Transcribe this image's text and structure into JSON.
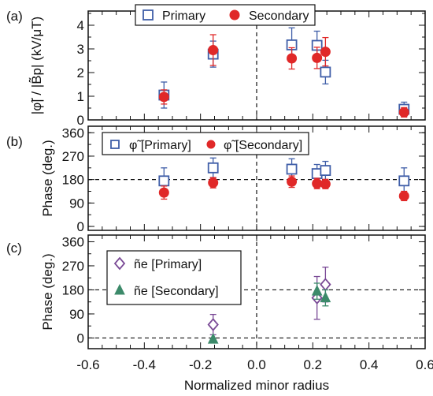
{
  "chart_data": [
    {
      "panel": "(a)",
      "type": "scatter",
      "ylabel": "|φ̃| / |B̃p| (kV/μT)",
      "ylim": [
        0,
        4.6
      ],
      "yticks": [
        0,
        1,
        2,
        3,
        4
      ],
      "ytick_labels": [
        "0",
        "1",
        "2",
        "3",
        "4"
      ],
      "xlim": [
        -0.6,
        0.6
      ],
      "hline": null,
      "legend": {
        "position": "top",
        "layout": "horizontal"
      },
      "series": [
        {
          "name": "Primary",
          "marker": "open-square",
          "color": "#3f5ea8",
          "points": [
            {
              "x": -0.33,
              "y": 1.05,
              "err": 0.55
            },
            {
              "x": -0.155,
              "y": 2.78,
              "err": 0.55
            },
            {
              "x": 0.125,
              "y": 3.17,
              "err": 0.72
            },
            {
              "x": 0.215,
              "y": 3.15,
              "err": 0.6
            },
            {
              "x": 0.245,
              "y": 2.02,
              "err": 0.5
            },
            {
              "x": 0.525,
              "y": 0.45,
              "err": 0.3
            }
          ]
        },
        {
          "name": "Secondary",
          "marker": "filled-circle",
          "color": "#e02828",
          "points": [
            {
              "x": -0.33,
              "y": 0.97,
              "err": 0.3
            },
            {
              "x": -0.155,
              "y": 2.95,
              "err": 0.65
            },
            {
              "x": 0.125,
              "y": 2.6,
              "err": 0.45
            },
            {
              "x": 0.215,
              "y": 2.62,
              "err": 0.45
            },
            {
              "x": 0.245,
              "y": 2.88,
              "err": 0.6
            },
            {
              "x": 0.525,
              "y": 0.32,
              "err": 0.2
            }
          ]
        }
      ]
    },
    {
      "panel": "(b)",
      "type": "scatter",
      "ylabel": "Phase (deg.)",
      "ylim": [
        -15,
        385
      ],
      "yticks": [
        0,
        90,
        180,
        270,
        360
      ],
      "ytick_labels": [
        "0",
        "90",
        "180",
        "270",
        "360"
      ],
      "xlim": [
        -0.6,
        0.6
      ],
      "hline": 180,
      "legend": {
        "position": "top-left",
        "layout": "horizontal"
      },
      "series": [
        {
          "name": "φ̃ [Primary]",
          "marker": "open-square",
          "color": "#3f5ea8",
          "points": [
            {
              "x": -0.33,
              "y": 175,
              "err": 50
            },
            {
              "x": -0.155,
              "y": 225,
              "err": 38
            },
            {
              "x": 0.125,
              "y": 220,
              "err": 40
            },
            {
              "x": 0.215,
              "y": 203,
              "err": 35
            },
            {
              "x": 0.245,
              "y": 215,
              "err": 35
            },
            {
              "x": 0.525,
              "y": 175,
              "err": 50
            }
          ]
        },
        {
          "name": "φ̃ [Secondary]",
          "marker": "filled-circle",
          "color": "#e02828",
          "points": [
            {
              "x": -0.33,
              "y": 130,
              "err": 25
            },
            {
              "x": -0.155,
              "y": 168,
              "err": 20
            },
            {
              "x": 0.125,
              "y": 172,
              "err": 22
            },
            {
              "x": 0.215,
              "y": 165,
              "err": 20
            },
            {
              "x": 0.245,
              "y": 163,
              "err": 18
            },
            {
              "x": 0.525,
              "y": 117,
              "err": 18
            }
          ]
        }
      ]
    },
    {
      "panel": "(c)",
      "type": "scatter",
      "ylabel": "Phase (deg.)",
      "xlabel": "Normalized minor radius",
      "ylim": [
        -40,
        385
      ],
      "yticks": [
        0,
        90,
        180,
        270,
        360
      ],
      "ytick_labels": [
        "0",
        "90",
        "180",
        "270",
        "360"
      ],
      "xlim": [
        -0.6,
        0.6
      ],
      "xticks": [
        -0.6,
        -0.4,
        -0.2,
        0.0,
        0.2,
        0.4,
        0.6
      ],
      "xtick_labels": [
        "-0.6",
        "-0.4",
        "-0.2",
        "0.0",
        "0.2",
        "0.4",
        "0.6"
      ],
      "hline": 180,
      "hline_zero": true,
      "legend": {
        "position": "top-left",
        "layout": "vertical"
      },
      "series": [
        {
          "name": "ñe [Primary]",
          "marker": "open-diamond",
          "color": "#7a4a96",
          "points": [
            {
              "x": -0.155,
              "y": 50,
              "err": 38
            },
            {
              "x": 0.215,
              "y": 150,
              "err": 80
            },
            {
              "x": 0.245,
              "y": 200,
              "err": 65
            }
          ]
        },
        {
          "name": "ñe [Secondary]",
          "marker": "filled-triangle",
          "color": "#3c8a6a",
          "points": [
            {
              "x": -0.155,
              "y": -5,
              "err": 0
            },
            {
              "x": 0.215,
              "y": 175,
              "err": 30
            },
            {
              "x": 0.245,
              "y": 150,
              "err": 30
            }
          ]
        }
      ]
    }
  ]
}
